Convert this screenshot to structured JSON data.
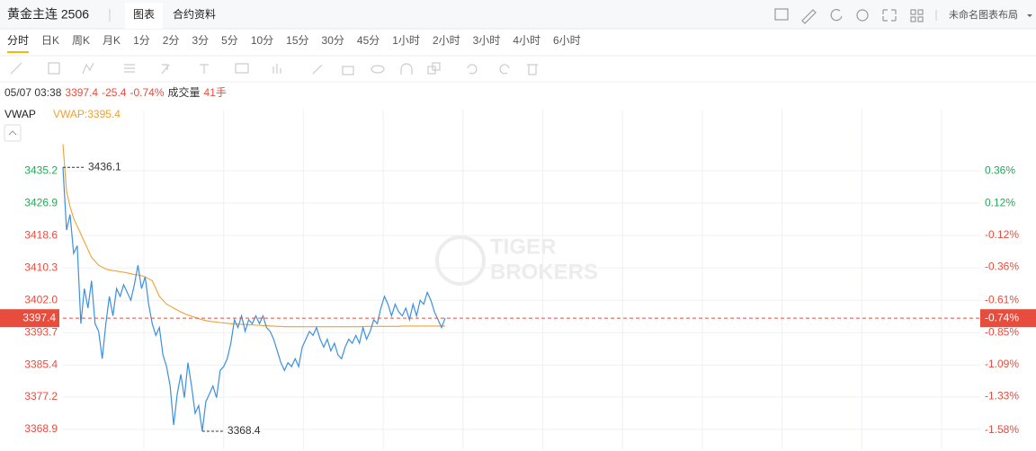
{
  "header": {
    "symbol": "黄金主连 2506",
    "tabs": [
      "图表",
      "合约资料"
    ],
    "layout_name": "未命名图表布局"
  },
  "periods": [
    "分时",
    "日K",
    "周K",
    "月K",
    "1分",
    "2分",
    "3分",
    "5分",
    "10分",
    "15分",
    "30分",
    "45分",
    "1小时",
    "2小时",
    "3小时",
    "4小时",
    "6小时"
  ],
  "quote": {
    "time": "05/07 03:38",
    "change": "-25.4",
    "change_pct": "-0.74%",
    "volume_label": "成交量",
    "volume": "41手"
  },
  "indicator": {
    "value_label": "VWAP:3395.4"
  },
  "watermark": {
    "line1": "TIGER",
    "line2": "BROKERS"
  },
  "chart_data": {
    "type": "line",
    "grid": true,
    "ylim": [
      3363.8,
      3450.9
    ],
    "yticks": [
      3435.2,
      3426.9,
      3418.6,
      3410.3,
      {
        "value": 3402,
        "label": "3402.0"
      },
      3393.7,
      3385.4,
      3377.2,
      3368.9
    ],
    "y2lim": [
      -1.724,
      0.821
    ],
    "y2ticks": [
      {
        "value": 0.36,
        "label": "0.36%"
      },
      {
        "value": 0.12,
        "label": "0.12%"
      },
      {
        "value": -0.12,
        "label": "-0.12%"
      },
      {
        "value": -0.36,
        "label": "-0.36%"
      },
      {
        "value": -0.61,
        "label": "-0.61%"
      },
      {
        "value": -0.85,
        "label": "-0.85%"
      },
      {
        "value": -1.09,
        "label": "-1.09%"
      },
      {
        "value": -1.33,
        "label": "-1.33%"
      },
      {
        "value": -1.58,
        "label": "-1.58%"
      }
    ],
    "series": [
      {
        "color": "#3d8fe0",
        "values": [
          3436.1,
          3420,
          3424,
          3414,
          3416,
          3396,
          3405,
          3400,
          3407,
          3396,
          3394,
          3387,
          3396,
          3403,
          3398,
          3405,
          3403,
          3406,
          3404,
          3402,
          3406,
          3411,
          3405,
          3408,
          3401,
          3396,
          3393,
          3395,
          3388,
          3385,
          3380,
          3370,
          3378,
          3383,
          3377,
          3386,
          3380,
          3373,
          3375,
          3368.4,
          3376,
          3378,
          3380,
          3377,
          3384,
          3385,
          3387,
          3391,
          3397,
          3395,
          3398,
          3394,
          3397,
          3396,
          3398,
          3396,
          3398,
          3395,
          3394,
          3392,
          3389,
          3386,
          3384,
          3386,
          3385,
          3387,
          3385,
          3390,
          3392,
          3394,
          3393,
          3395,
          3392,
          3390,
          3392,
          3389,
          3391,
          3388,
          3387,
          3390,
          3392,
          3391,
          3393,
          3391,
          3395,
          3392,
          3394,
          3397,
          3396,
          3400,
          3403,
          3401,
          3398,
          3401,
          3399,
          3398,
          3400,
          3397,
          3401,
          3398,
          3402,
          3401,
          3404,
          3402,
          3399,
          3397,
          3395,
          3397.4
        ]
      },
      {
        "name": "VWAP",
        "color": "#f0a030",
        "values": [
          3442,
          3430,
          3426,
          3423,
          3421,
          3419,
          3417,
          3415,
          3413,
          3412,
          3411,
          3410.5,
          3410,
          3409.8,
          3409.6,
          3409.5,
          3409.3,
          3409.2,
          3409,
          3408.8,
          3408.6,
          3408.5,
          3408.3,
          3408,
          3407.5,
          3407,
          3405,
          3403,
          3402,
          3401,
          3400.5,
          3400,
          3399.5,
          3399,
          3398.6,
          3398.2,
          3397.9,
          3397.6,
          3397.3,
          3397,
          3396.8,
          3396.6,
          3396.5,
          3396.4,
          3396.3,
          3396.2,
          3396.1,
          3396.0,
          3395.9,
          3395.9,
          3395.8,
          3395.8,
          3395.7,
          3395.7,
          3395.6,
          3395.6,
          3395.5,
          3395.5,
          3395.4,
          3395.4,
          3395.3,
          3395.3,
          3395.2,
          3395.2,
          3395.2,
          3395.2,
          3395.2,
          3395.2,
          3395.2,
          3395.2,
          3395.2,
          3395.2,
          3395.2,
          3395.2,
          3395.2,
          3395.2,
          3395.2,
          3395.2,
          3395.2,
          3395.2,
          3395.2,
          3395.2,
          3395.2,
          3395.2,
          3395.2,
          3395.3,
          3395.3,
          3395.3,
          3395.3,
          3395.3,
          3395.3,
          3395.3,
          3395.3,
          3395.3,
          3395.3,
          3395.4,
          3395.4,
          3395.4,
          3395.4,
          3395.4,
          3395.4,
          3395.4,
          3395.4,
          3395.4,
          3395.4,
          3395.4,
          3395.4,
          3395.4
        ]
      }
    ]
  }
}
